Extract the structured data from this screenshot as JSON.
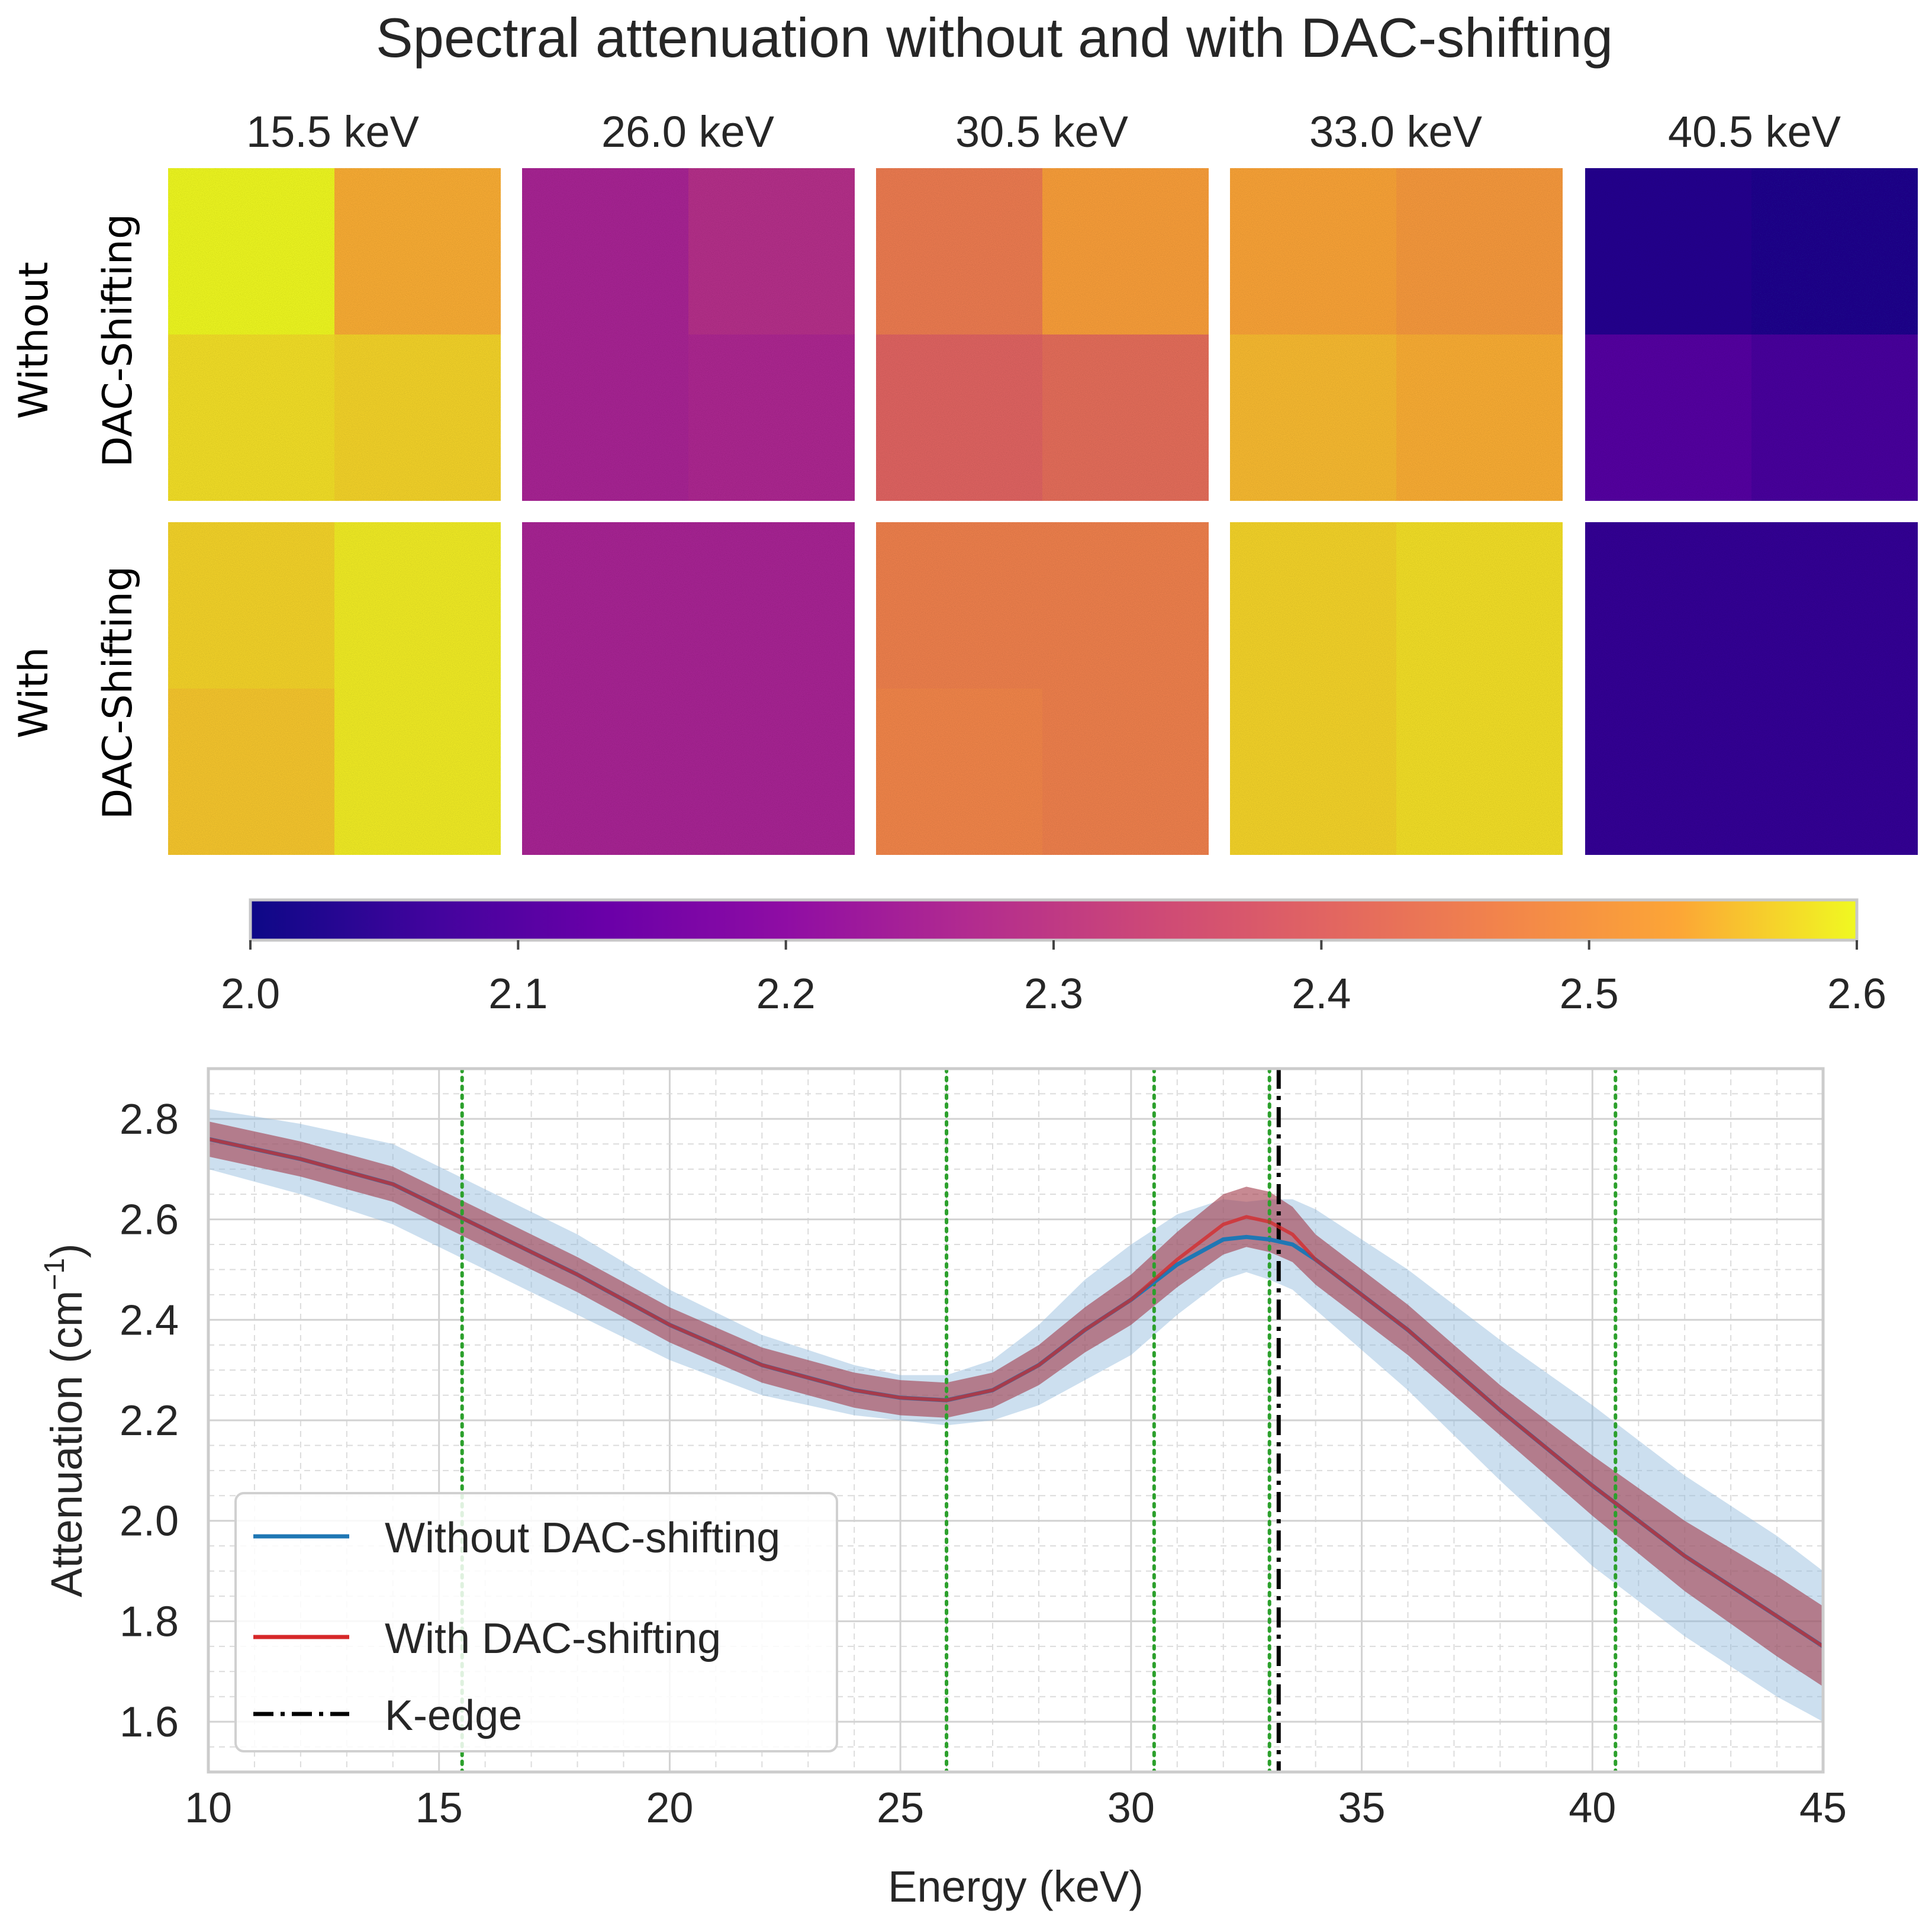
{
  "figure": {
    "title": "Spectral attenuation without and with DAC-shifting"
  },
  "heatmaps": {
    "columns": [
      "15.5 keV",
      "26.0 keV",
      "30.5 keV",
      "33.0 keV",
      "40.5 keV"
    ],
    "row_labels": [
      {
        "line1": "Without",
        "line2": "DAC-Shifting"
      },
      {
        "line1": "With",
        "line2": "DAC-Shifting"
      }
    ],
    "quadrant_values": [
      [
        [
          2.6,
          2.54,
          2.58,
          2.57
        ],
        [
          2.25,
          2.28,
          2.25,
          2.26
        ],
        [
          2.45,
          2.52,
          2.4,
          2.42
        ],
        [
          2.53,
          2.51,
          2.55,
          2.54
        ],
        [
          2.03,
          2.02,
          2.1,
          2.08
        ]
      ],
      [
        [
          2.57,
          2.59,
          2.56,
          2.59
        ],
        [
          2.25,
          2.25,
          2.25,
          2.25
        ],
        [
          2.46,
          2.46,
          2.47,
          2.46
        ],
        [
          2.57,
          2.58,
          2.57,
          2.58
        ],
        [
          2.05,
          2.05,
          2.05,
          2.05
        ]
      ]
    ],
    "colormap": "plasma",
    "colorbar": {
      "min": 2.0,
      "max": 2.6,
      "ticks": [
        "2.0",
        "2.1",
        "2.2",
        "2.3",
        "2.4",
        "2.5",
        "2.6"
      ]
    }
  },
  "chart_data": {
    "type": "line",
    "title": "",
    "xlabel": "Energy (keV)",
    "ylabel_main": "Attenuation (cm",
    "ylabel_sup": "−1",
    "ylabel_close": ")",
    "xlim": [
      10,
      45
    ],
    "ylim": [
      1.5,
      2.9
    ],
    "xticks": [
      10,
      15,
      20,
      25,
      30,
      35,
      40,
      45
    ],
    "yticks": [
      1.6,
      1.8,
      2.0,
      2.2,
      2.4,
      2.6,
      2.8
    ],
    "xticklabels": [
      "10",
      "15",
      "20",
      "25",
      "30",
      "35",
      "40",
      "45"
    ],
    "yticklabels": [
      "1.6",
      "1.8",
      "2.0",
      "2.2",
      "2.4",
      "2.6",
      "2.8"
    ],
    "x": [
      10,
      12,
      14,
      16,
      18,
      20,
      22,
      24,
      25,
      26,
      27,
      28,
      29,
      30,
      31,
      32,
      32.5,
      33,
      33.5,
      34,
      36,
      38,
      40,
      42,
      44,
      45
    ],
    "series": [
      {
        "name": "Without DAC-shifting",
        "color": "#1f77b4",
        "band_color": "#8fb8dc",
        "y": [
          2.76,
          2.72,
          2.67,
          2.58,
          2.49,
          2.39,
          2.31,
          2.26,
          2.245,
          2.24,
          2.26,
          2.31,
          2.38,
          2.44,
          2.51,
          2.56,
          2.565,
          2.56,
          2.55,
          2.52,
          2.38,
          2.22,
          2.07,
          1.93,
          1.81,
          1.75
        ],
        "band": [
          0.06,
          0.07,
          0.08,
          0.08,
          0.08,
          0.07,
          0.06,
          0.05,
          0.045,
          0.05,
          0.06,
          0.08,
          0.1,
          0.11,
          0.1,
          0.08,
          0.07,
          0.08,
          0.09,
          0.1,
          0.12,
          0.14,
          0.16,
          0.16,
          0.16,
          0.15
        ]
      },
      {
        "name": "With DAC-shifting",
        "color": "#d62728",
        "band_color": "#a23a4a",
        "y": [
          2.76,
          2.72,
          2.67,
          2.58,
          2.49,
          2.39,
          2.31,
          2.26,
          2.245,
          2.24,
          2.26,
          2.31,
          2.38,
          2.44,
          2.52,
          2.59,
          2.605,
          2.595,
          2.57,
          2.52,
          2.38,
          2.22,
          2.07,
          1.93,
          1.81,
          1.75
        ],
        "band": [
          0.035,
          0.035,
          0.035,
          0.035,
          0.035,
          0.035,
          0.035,
          0.035,
          0.035,
          0.035,
          0.035,
          0.04,
          0.045,
          0.05,
          0.055,
          0.06,
          0.06,
          0.06,
          0.055,
          0.05,
          0.05,
          0.05,
          0.06,
          0.07,
          0.08,
          0.08
        ]
      }
    ],
    "vlines": [
      {
        "x": 15.5,
        "style": "dotted",
        "color": "#2ca02c"
      },
      {
        "x": 26.0,
        "style": "dotted",
        "color": "#2ca02c"
      },
      {
        "x": 30.5,
        "style": "dotted",
        "color": "#2ca02c"
      },
      {
        "x": 33.0,
        "style": "dotted",
        "color": "#2ca02c"
      },
      {
        "x": 40.5,
        "style": "dotted",
        "color": "#2ca02c"
      },
      {
        "x": 33.2,
        "style": "dashdot",
        "color": "#000000",
        "label": "K-edge"
      }
    ],
    "legend": {
      "position": "lower-left",
      "entries": [
        "Without DAC-shifting",
        "With DAC-shifting",
        "K-edge"
      ]
    },
    "grid": true
  }
}
